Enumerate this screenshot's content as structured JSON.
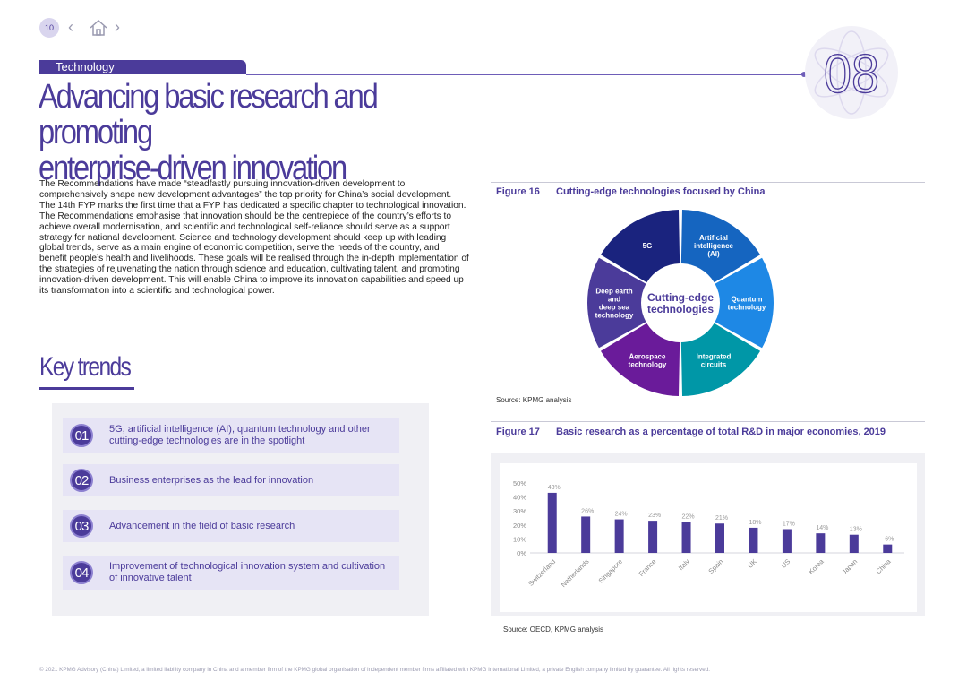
{
  "nav": {
    "page_number": "10",
    "prev_glyph": "‹",
    "next_glyph": "›",
    "home_icon": "home-icon"
  },
  "section": {
    "label": "Technology",
    "chapter": "08"
  },
  "title": {
    "line1": "Advancing basic research and promoting",
    "line2": "enterprise-driven innovation"
  },
  "body": "The Recommendations have made “steadfastly pursuing innovation-driven development to comprehensively shape new development advantages” the top priority for China’s social development. The 14th FYP marks the first time that a FYP has dedicated a specific chapter to technological innovation. The Recommendations emphasise that innovation should be the centrepiece of the country’s efforts to achieve overall modernisation, and scientific and technological self-reliance should serve as a support strategy for national development. Science and technology development should keep up with leading global trends, serve as a main engine of economic competition, serve the needs of the country, and benefit people’s health and livelihoods. These goals will be realised through the in-depth implementation of the strategies of rejuvenating the nation through science and education, cultivating talent, and promoting innovation-driven development. This will enable China to improve its innovation capabilities and speed up its transformation into a scientific and technological power.",
  "key_trends": {
    "title": "Key trends",
    "items": [
      {
        "num": "01",
        "text": "5G, artificial intelligence (AI), quantum technology and other cutting-edge technologies are in the spotlight"
      },
      {
        "num": "02",
        "text": "Business enterprises as the lead for innovation"
      },
      {
        "num": "03",
        "text": "Advancement in the field of basic research"
      },
      {
        "num": "04",
        "text": "Improvement of technological innovation system and cultivation of innovative talent"
      }
    ]
  },
  "figure16": {
    "number": "Figure 16",
    "title": "Cutting-edge technologies focused by China",
    "source": "Source: KPMG analysis",
    "center_line1": "Cutting-edge",
    "center_line2": "technologies",
    "segments": [
      {
        "lines": [
          "Artificial",
          "intelligence",
          "(AI)"
        ],
        "color": "#1565c0"
      },
      {
        "lines": [
          "Quantum",
          "technology"
        ],
        "color": "#1e88e5"
      },
      {
        "lines": [
          "Integrated",
          "circuits"
        ],
        "color": "#0097a7"
      },
      {
        "lines": [
          "Aerospace",
          "technology"
        ],
        "color": "#6a1b9a"
      },
      {
        "lines": [
          "Deep earth",
          "and",
          "deep sea",
          "technology"
        ],
        "color": "#4b3b9a"
      },
      {
        "lines": [
          "5G"
        ],
        "color": "#1a237e"
      }
    ]
  },
  "figure17": {
    "number": "Figure 17",
    "title": "Basic research as a percentage of total R&D in major economies, 2019",
    "source": "Source: OECD, KPMG analysis"
  },
  "chart_data": {
    "type": "bar",
    "categories": [
      "Switzerland",
      "Netherlands",
      "Singapore",
      "France",
      "Italy",
      "Spain",
      "UK",
      "US",
      "Korea",
      "Japan",
      "China"
    ],
    "values": [
      43,
      26,
      24,
      23,
      22,
      21,
      18,
      17,
      14,
      13,
      6
    ],
    "data_labels": [
      "43%",
      "26%",
      "24%",
      "23%",
      "22%",
      "21%",
      "18%",
      "17%",
      "14%",
      "13%",
      "6%"
    ],
    "ylim": [
      0,
      50
    ],
    "yticks": [
      "0%",
      "10%",
      "20%",
      "30%",
      "40%",
      "50%"
    ],
    "bar_color": "#4b3b9a",
    "grid": false
  },
  "footer": "© 2021 KPMG Advisory (China) Limited, a limited liability company in China and a member firm of the KPMG global organisation of independent member firms affiliated with KPMG International Limited, a private English company limited by guarantee. All rights reserved."
}
